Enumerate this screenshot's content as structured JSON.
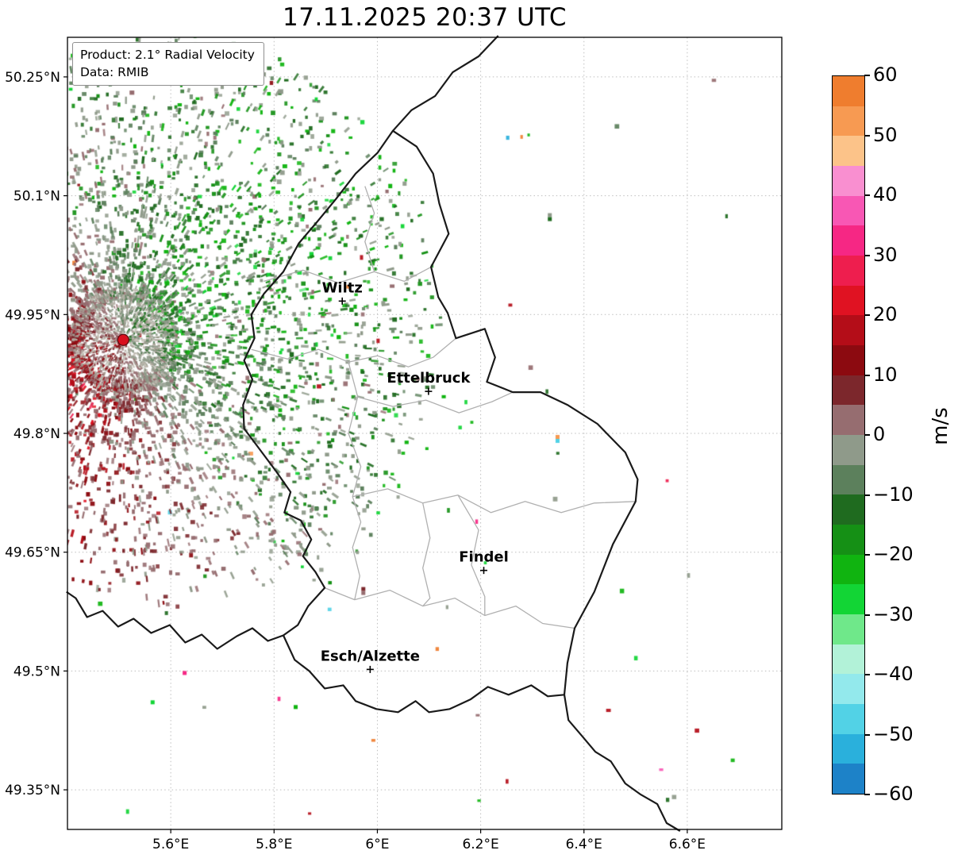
{
  "title": "17.11.2025 20:37 UTC",
  "legend": {
    "product": "Product: 2.1° Radial Velocity",
    "data": "Data: RMIB"
  },
  "colorbar": {
    "unit": "m/s",
    "min": -60,
    "max": 60,
    "tick_values": [
      60,
      50,
      40,
      30,
      20,
      10,
      0,
      -10,
      -20,
      -30,
      -40,
      -50,
      -60
    ],
    "tick_labels": [
      "60",
      "50",
      "40",
      "30",
      "20",
      "10",
      "0",
      "−10",
      "−20",
      "−30",
      "−40",
      "−50",
      "−60"
    ],
    "bands_top_to_bottom": [
      {
        "from": 60,
        "to": 55,
        "color": "#ef7d2e"
      },
      {
        "from": 55,
        "to": 50,
        "color": "#f79a52"
      },
      {
        "from": 50,
        "to": 45,
        "color": "#fcc389"
      },
      {
        "from": 45,
        "to": 40,
        "color": "#f98fd0"
      },
      {
        "from": 40,
        "to": 35,
        "color": "#f857b4"
      },
      {
        "from": 35,
        "to": 30,
        "color": "#f62784"
      },
      {
        "from": 30,
        "to": 25,
        "color": "#ee1e4e"
      },
      {
        "from": 25,
        "to": 20,
        "color": "#e01222"
      },
      {
        "from": 20,
        "to": 15,
        "color": "#b40d18"
      },
      {
        "from": 15,
        "to": 10,
        "color": "#8c0a10"
      },
      {
        "from": 10,
        "to": 5,
        "color": "#7c272c"
      },
      {
        "from": 5,
        "to": 0,
        "color": "#966d70"
      },
      {
        "from": 0,
        "to": -5,
        "color": "#8f9a8a"
      },
      {
        "from": -5,
        "to": -10,
        "color": "#5c805c"
      },
      {
        "from": -10,
        "to": -15,
        "color": "#1f6b1f"
      },
      {
        "from": -15,
        "to": -20,
        "color": "#159015"
      },
      {
        "from": -20,
        "to": -25,
        "color": "#10b410"
      },
      {
        "from": -25,
        "to": -30,
        "color": "#12d535"
      },
      {
        "from": -30,
        "to": -35,
        "color": "#6fe88a"
      },
      {
        "from": -35,
        "to": -40,
        "color": "#b2f2d8"
      },
      {
        "from": -40,
        "to": -45,
        "color": "#93e9ec"
      },
      {
        "from": -45,
        "to": -50,
        "color": "#52d2e6"
      },
      {
        "from": -50,
        "to": -55,
        "color": "#2ab0dc"
      },
      {
        "from": -55,
        "to": -60,
        "color": "#1d82c8"
      }
    ]
  },
  "axes": {
    "x_tick_values": [
      5.6,
      5.8,
      6.0,
      6.2,
      6.4,
      6.6
    ],
    "x_tick_labels": [
      "5.6°E",
      "5.8°E",
      "6°E",
      "6.2°E",
      "6.4°E",
      "6.6°E"
    ],
    "y_tick_values": [
      50.25,
      50.1,
      49.95,
      49.8,
      49.65,
      49.5,
      49.35
    ],
    "y_tick_labels": [
      "50.25°N",
      "50.1°N",
      "49.95°N",
      "49.8°N",
      "49.65°N",
      "49.5°N",
      "49.35°N"
    ]
  },
  "map": {
    "extent": {
      "lon_min": 5.4,
      "lon_max": 6.783,
      "lat_min": 49.3,
      "lat_max": 50.3
    },
    "cities": [
      {
        "name": "Wiltz",
        "lon": 5.932,
        "lat": 49.967
      },
      {
        "name": "Ettelbruck",
        "lon": 6.099,
        "lat": 49.853
      },
      {
        "name": "Findel",
        "lon": 6.206,
        "lat": 49.627
      },
      {
        "name": "Esch/Alzette",
        "lon": 5.986,
        "lat": 49.502
      }
    ],
    "radar_site": {
      "lon": 5.508,
      "lat": 49.918
    },
    "borders_national": [
      [
        6.03,
        50.182
      ],
      [
        6.076,
        50.162
      ],
      [
        6.108,
        50.128
      ],
      [
        6.12,
        50.09
      ],
      [
        6.138,
        50.052
      ],
      [
        6.104,
        50.01
      ],
      [
        6.118,
        49.972
      ],
      [
        6.136,
        49.952
      ],
      [
        6.152,
        49.92
      ],
      [
        6.208,
        49.932
      ],
      [
        6.228,
        49.896
      ],
      [
        6.212,
        49.865
      ],
      [
        6.262,
        49.852
      ],
      [
        6.316,
        49.852
      ],
      [
        6.368,
        49.836
      ],
      [
        6.426,
        49.812
      ],
      [
        6.48,
        49.776
      ],
      [
        6.504,
        49.742
      ],
      [
        6.5,
        49.714
      ],
      [
        6.456,
        49.66
      ],
      [
        6.42,
        49.6
      ],
      [
        6.382,
        49.554
      ],
      [
        6.368,
        49.51
      ],
      [
        6.362,
        49.47
      ],
      [
        6.33,
        49.468
      ],
      [
        6.298,
        49.482
      ],
      [
        6.254,
        49.47
      ],
      [
        6.214,
        49.48
      ],
      [
        6.18,
        49.464
      ],
      [
        6.14,
        49.452
      ],
      [
        6.1,
        49.448
      ],
      [
        6.074,
        49.462
      ],
      [
        6.04,
        49.448
      ],
      [
        5.998,
        49.452
      ],
      [
        5.958,
        49.462
      ],
      [
        5.934,
        49.482
      ],
      [
        5.898,
        49.478
      ],
      [
        5.868,
        49.5
      ],
      [
        5.84,
        49.514
      ],
      [
        5.818,
        49.545
      ],
      [
        5.846,
        49.558
      ],
      [
        5.866,
        49.582
      ],
      [
        5.898,
        49.605
      ],
      [
        5.88,
        49.625
      ],
      [
        5.856,
        49.645
      ],
      [
        5.872,
        49.666
      ],
      [
        5.852,
        49.69
      ],
      [
        5.82,
        49.7
      ],
      [
        5.832,
        49.726
      ],
      [
        5.804,
        49.752
      ],
      [
        5.772,
        49.78
      ],
      [
        5.742,
        49.806
      ],
      [
        5.74,
        49.836
      ],
      [
        5.758,
        49.868
      ],
      [
        5.742,
        49.892
      ],
      [
        5.762,
        49.92
      ],
      [
        5.756,
        49.95
      ],
      [
        5.78,
        49.976
      ],
      [
        5.818,
        50.004
      ],
      [
        5.848,
        50.04
      ],
      [
        5.882,
        50.066
      ],
      [
        5.92,
        50.096
      ],
      [
        5.958,
        50.128
      ],
      [
        6.0,
        50.154
      ],
      [
        6.03,
        50.182
      ]
    ],
    "borders_foreign": [
      [
        [
          6.03,
          50.182
        ],
        [
          6.066,
          50.208
        ],
        [
          6.112,
          50.226
        ],
        [
          6.146,
          50.256
        ],
        [
          6.196,
          50.276
        ],
        [
          6.234,
          50.302
        ]
      ],
      [
        [
          5.818,
          49.545
        ],
        [
          5.788,
          49.538
        ],
        [
          5.758,
          49.554
        ],
        [
          5.728,
          49.544
        ],
        [
          5.69,
          49.528
        ],
        [
          5.66,
          49.546
        ],
        [
          5.628,
          49.536
        ],
        [
          5.598,
          49.558
        ],
        [
          5.562,
          49.548
        ],
        [
          5.528,
          49.566
        ],
        [
          5.498,
          49.556
        ],
        [
          5.468,
          49.576
        ],
        [
          5.438,
          49.568
        ],
        [
          5.416,
          49.592
        ],
        [
          5.398,
          49.6
        ]
      ],
      [
        [
          6.362,
          49.47
        ],
        [
          6.37,
          49.438
        ],
        [
          6.396,
          49.418
        ],
        [
          6.422,
          49.398
        ],
        [
          6.452,
          49.386
        ],
        [
          6.48,
          49.358
        ],
        [
          6.51,
          49.344
        ],
        [
          6.542,
          49.332
        ],
        [
          6.56,
          49.308
        ],
        [
          6.586,
          49.298
        ]
      ]
    ],
    "borders_district": [
      [
        [
          5.78,
          49.992
        ],
        [
          5.856,
          50.006
        ],
        [
          5.924,
          49.99
        ],
        [
          5.994,
          50.004
        ],
        [
          6.052,
          49.992
        ],
        [
          6.104,
          50.01
        ]
      ],
      [
        [
          5.756,
          49.906
        ],
        [
          5.826,
          49.894
        ],
        [
          5.886,
          49.906
        ],
        [
          5.944,
          49.89
        ],
        [
          6.0,
          49.898
        ],
        [
          6.06,
          49.884
        ],
        [
          6.108,
          49.896
        ],
        [
          6.152,
          49.92
        ]
      ],
      [
        [
          5.944,
          49.89
        ],
        [
          5.962,
          49.846
        ],
        [
          5.944,
          49.8
        ],
        [
          5.968,
          49.758
        ],
        [
          5.952,
          49.72
        ],
        [
          5.968,
          49.688
        ],
        [
          5.952,
          49.656
        ],
        [
          5.966,
          49.62
        ],
        [
          5.956,
          49.59
        ]
      ],
      [
        [
          5.962,
          49.846
        ],
        [
          6.03,
          49.834
        ],
        [
          6.094,
          49.842
        ],
        [
          6.158,
          49.826
        ],
        [
          6.222,
          49.84
        ],
        [
          6.262,
          49.852
        ]
      ],
      [
        [
          5.952,
          49.72
        ],
        [
          6.02,
          49.73
        ],
        [
          6.088,
          49.712
        ],
        [
          6.156,
          49.722
        ],
        [
          6.22,
          49.7
        ],
        [
          6.286,
          49.714
        ],
        [
          6.356,
          49.7
        ],
        [
          6.42,
          49.712
        ],
        [
          6.5,
          49.714
        ]
      ],
      [
        [
          5.898,
          49.605
        ],
        [
          5.956,
          49.59
        ],
        [
          6.024,
          49.602
        ],
        [
          6.088,
          49.582
        ],
        [
          6.15,
          49.592
        ],
        [
          6.208,
          49.57
        ],
        [
          6.268,
          49.582
        ],
        [
          6.32,
          49.56
        ],
        [
          6.382,
          49.554
        ]
      ],
      [
        [
          6.156,
          49.722
        ],
        [
          6.196,
          49.678
        ],
        [
          6.182,
          49.634
        ],
        [
          6.208,
          49.594
        ],
        [
          6.208,
          49.57
        ]
      ],
      [
        [
          5.994,
          50.004
        ],
        [
          5.976,
          50.042
        ],
        [
          5.994,
          50.078
        ],
        [
          5.976,
          50.112
        ]
      ],
      [
        [
          6.088,
          49.712
        ],
        [
          6.102,
          49.668
        ],
        [
          6.088,
          49.63
        ],
        [
          6.102,
          49.592
        ],
        [
          6.088,
          49.582
        ]
      ]
    ]
  },
  "chart_data": {
    "type": "heatmap",
    "title": "17.11.2025 20:37 UTC",
    "product": "2.1° Radial Velocity",
    "data_source": "RMIB",
    "units": "m/s",
    "value_range": [
      -60,
      60
    ],
    "x_axis_lon_east_range": [
      5.4,
      6.783
    ],
    "y_axis_lat_north_range": [
      49.3,
      50.3
    ],
    "radar_site": {
      "lon": 5.508,
      "lat": 49.918
    },
    "field_summary": "Scattered radial-velocity echoes within roughly 0.55 degrees of the radar site at the western edge of the map: negative velocities (green, motion toward the radar) dominate north and east of the site, positive velocities (dark red, motion away) dominate south-west, and near-zero grey echoes ring the site; only a few isolated echoes elsewhere over Luxembourg.",
    "isolated_cells": [
      {
        "lon": 6.33,
        "lat": 50.078,
        "values_ms": [
          -4,
          -12
        ]
      },
      {
        "lon": 6.345,
        "lat": 49.798,
        "values_ms": [
          54,
          -46
        ]
      },
      {
        "lon": 5.969,
        "lat": 49.606,
        "values_ms": [
          8,
          2
        ]
      },
      {
        "lon": 5.623,
        "lat": 49.5,
        "values_ms": [
          34
        ]
      },
      {
        "lon": 5.838,
        "lat": 49.457,
        "values_ms": [
          -22
        ]
      },
      {
        "lon": 5.561,
        "lat": 49.463,
        "values_ms": [
          -26
        ]
      }
    ],
    "speckle_gen": {
      "seed": 20251117,
      "core_count": 1800,
      "field_count": 4200,
      "far_green_count": 520,
      "outlier_count": 80,
      "positive_dir_deg": 150
    }
  }
}
